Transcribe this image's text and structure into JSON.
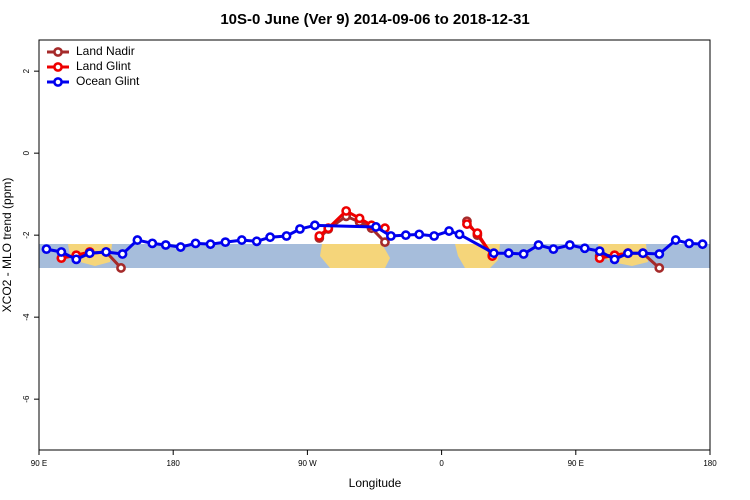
{
  "chart_data": {
    "type": "line",
    "title": "10S-0 June (Ver 9)   2014-09-06 to 2018-12-31",
    "x_label": "Longitude",
    "y_label": "XCO2 - MLO trend (ppm)",
    "xlim": [
      90,
      540
    ],
    "ylim": [
      -7.24,
      2.76
    ],
    "xticks": [
      {
        "value": 90,
        "label": "90 E"
      },
      180,
      {
        "value": 270,
        "label": "90 W"
      },
      {
        "value": 360,
        "label": "0"
      },
      {
        "value": 450,
        "label": "90 E"
      },
      {
        "value": 540,
        "label": "180"
      }
    ],
    "yticks": [
      2,
      0,
      -2,
      -4,
      -6
    ],
    "legend": "top-left",
    "series": [
      {
        "name": "Land Nadir",
        "color": "#a52a2a",
        "x": [
          115,
          124,
          135,
          145,
          null,
          278,
          284,
          296,
          305,
          313,
          322,
          null,
          377,
          384,
          394,
          null,
          466,
          476,
          485,
          495,
          506
        ],
        "values": [
          -2.49,
          -2.44,
          -2.41,
          -2.8,
          null,
          -2.07,
          -1.85,
          -1.54,
          -1.68,
          -1.83,
          -2.17,
          null,
          -1.66,
          -2.0,
          -2.49,
          null,
          -2.51,
          -2.49,
          -2.44,
          -2.44,
          -2.8
        ]
      },
      {
        "name": "Land Glint",
        "color": "#ee0000",
        "x": [
          105,
          115,
          124,
          null,
          278,
          284,
          296,
          305,
          313,
          322,
          null,
          377,
          384,
          394,
          null,
          466,
          476,
          485
        ],
        "values": [
          -2.56,
          -2.49,
          -2.41,
          null,
          -2.02,
          -1.83,
          -1.41,
          -1.59,
          -1.76,
          -1.83,
          null,
          -1.73,
          -1.95,
          -2.51,
          null,
          -2.56,
          -2.49,
          -2.44
        ]
      },
      {
        "name": "Ocean Glint",
        "color": "#0000ee",
        "x": [
          95,
          105,
          115,
          124,
          135,
          146,
          156,
          166,
          175,
          185,
          195,
          205,
          215,
          226,
          236,
          245,
          256,
          265,
          275,
          316,
          326,
          336,
          345,
          355,
          365,
          372,
          395,
          405,
          415,
          425,
          435,
          446,
          456,
          466,
          476,
          485,
          495,
          506,
          517,
          526,
          535
        ],
        "values": [
          -2.34,
          -2.41,
          -2.59,
          -2.44,
          -2.41,
          -2.46,
          -2.12,
          -2.2,
          -2.24,
          -2.29,
          -2.2,
          -2.22,
          -2.17,
          -2.12,
          -2.15,
          -2.05,
          -2.02,
          -1.85,
          -1.76,
          -1.8,
          -2.02,
          -2.0,
          -1.98,
          -2.02,
          -1.9,
          -1.98,
          -2.44,
          -2.44,
          -2.46,
          -2.24,
          -2.34,
          -2.24,
          -2.32,
          -2.39,
          -2.59,
          -2.44,
          -2.44,
          -2.46,
          -2.12,
          -2.2,
          -2.22
        ]
      }
    ]
  }
}
